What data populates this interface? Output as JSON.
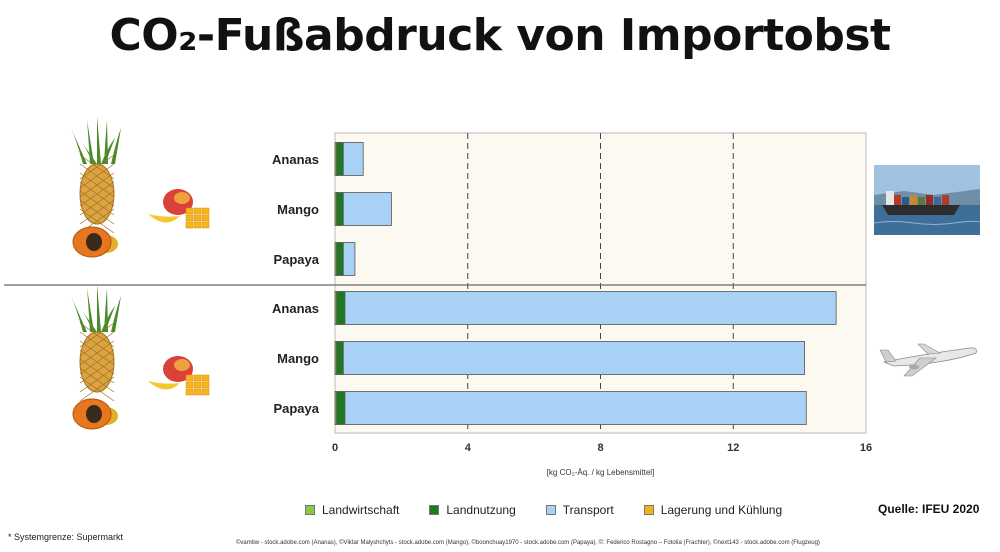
{
  "title": "CO₂-Fußabdruck von Importobst",
  "source": "Quelle: IFEU 2020",
  "footnote": "* Systemgrenze: Supermarkt",
  "credits": "©vamtiw - stock.adobe.com (Ananas), ©Viktar Malyshchyts - stock.adobe.com (Mango), ©boonchuay1970 - stock.adobe.com (Papaya), ©: Federico Rostagno – Fotolia (Frachter), ©next143 - stock.adobe.com (Flugzeug)",
  "colors": {
    "Landwirtschaft": "#8dc63f",
    "Landnutzung": "#1e7a1e",
    "Transport": "#a9d1f5",
    "Lagerung und Kühlung": "#f2b21c",
    "plot_bg": "#fcfaf0"
  },
  "icons": [
    "pineapple-icon",
    "mango-icon",
    "papaya-icon",
    "ship-icon",
    "airplane-icon"
  ],
  "chart_data": {
    "type": "bar",
    "orientation": "horizontal",
    "stacked": true,
    "xlabel": "[kg CO₂-Äq. / kg Lebensmittel]",
    "xlim": [
      0,
      16
    ],
    "xticks": [
      0,
      4,
      8,
      12,
      16
    ],
    "grid": "vertical dashed",
    "legend_position": "bottom",
    "groups": [
      {
        "transport_mode": "Schiff",
        "categories": [
          "Ananas",
          "Mango",
          "Papaya"
        ]
      },
      {
        "transport_mode": "Flugzeug",
        "categories": [
          "Ananas",
          "Mango",
          "Papaya"
        ]
      }
    ],
    "series": [
      {
        "name": "Landwirtschaft",
        "values": [
          0.05,
          0.05,
          0.05,
          0.05,
          0.05,
          0.05
        ]
      },
      {
        "name": "Landnutzung",
        "values": [
          0.2,
          0.2,
          0.2,
          0.25,
          0.2,
          0.25
        ]
      },
      {
        "name": "Transport",
        "values": [
          0.6,
          1.45,
          0.35,
          14.8,
          13.9,
          13.9
        ]
      },
      {
        "name": "Lagerung und Kühlung",
        "values": [
          0,
          0,
          0,
          0,
          0,
          0
        ]
      }
    ]
  }
}
